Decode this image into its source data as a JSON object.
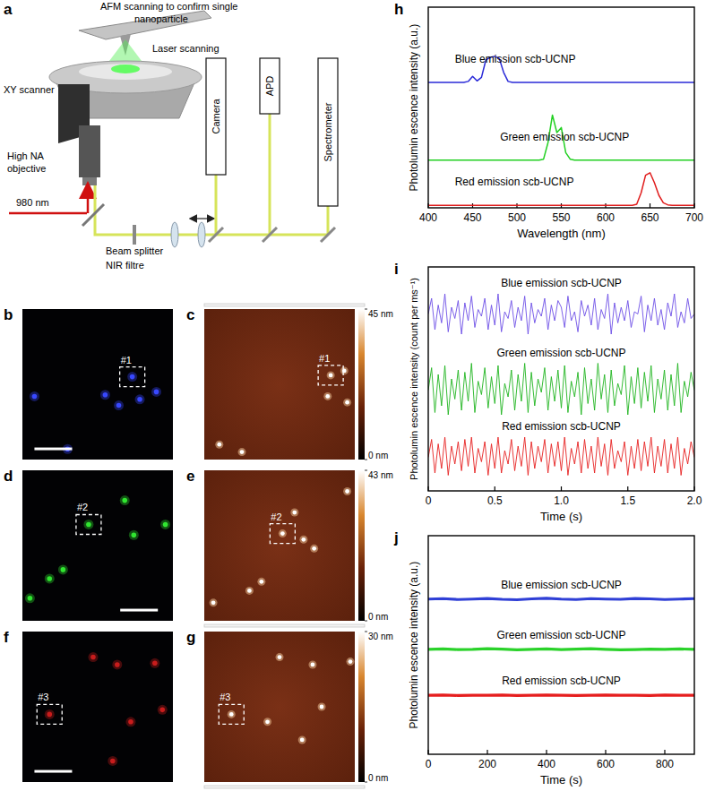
{
  "schematic": {
    "panel_label": "a",
    "afm_note": [
      "AFM scanning to confirm single",
      "nanoparticle"
    ],
    "laser_scanning": "Laser scanning",
    "xy_scanner": "XY scanner",
    "objective": [
      "High NA",
      "objective"
    ],
    "excitation": "980 nm",
    "beam_splitter": "Beam splitter",
    "filter": "NIR filtre",
    "detectors": [
      "Camera",
      "APD",
      "Spectrometer"
    ]
  },
  "images": [
    {
      "panel_label": "b",
      "color": "#3848ff",
      "particle_label": "#1"
    },
    {
      "panel_label": "c",
      "particle_label": "#1",
      "colorbar_ticks": [
        {
          "value": 0,
          "label": "0 nm"
        },
        {
          "value": 45,
          "label": "45 nm"
        }
      ]
    },
    {
      "panel_label": "d",
      "color": "#30e630",
      "particle_label": "#2"
    },
    {
      "panel_label": "e",
      "particle_label": "#2",
      "colorbar_ticks": [
        {
          "value": 0,
          "label": "0 nm"
        },
        {
          "value": 43,
          "label": "43 nm"
        }
      ]
    },
    {
      "panel_label": "f",
      "color": "#c81c1c",
      "particle_label": "#3"
    },
    {
      "panel_label": "g",
      "particle_label": "#3",
      "colorbar_ticks": [
        {
          "value": 0,
          "label": "0 nm"
        },
        {
          "value": 30,
          "label": "30 nm"
        }
      ]
    }
  ],
  "chart_data": [
    {
      "type": "line",
      "panel_label": "h",
      "x_label": "Wavelength (nm)",
      "y_label": "Photolumin escence intensity (a.u.)",
      "xlim": [
        400,
        700
      ],
      "xticks": [
        400,
        450,
        500,
        550,
        600,
        650,
        700
      ],
      "ylim": [
        0,
        4
      ],
      "tick_labels": "x",
      "x": [
        400,
        405,
        410,
        415,
        420,
        425,
        430,
        435,
        440,
        445,
        450,
        455,
        460,
        465,
        470,
        475,
        480,
        485,
        490,
        495,
        500,
        505,
        510,
        515,
        520,
        525,
        530,
        535,
        540,
        545,
        550,
        555,
        560,
        565,
        570,
        575,
        580,
        585,
        590,
        595,
        600,
        605,
        610,
        615,
        620,
        625,
        630,
        635,
        640,
        645,
        650,
        655,
        660,
        665,
        670,
        675,
        680,
        685,
        690,
        695,
        700
      ],
      "series": [
        {
          "name": "Blue emission scb-UCNP",
          "color": "#2a2ad8",
          "values": [
            2.5,
            2.5,
            2.5,
            2.5,
            2.5,
            2.5,
            2.5,
            2.5,
            2.5,
            2.52,
            2.62,
            2.53,
            2.6,
            2.95,
            3.0,
            3.02,
            2.98,
            2.7,
            2.52,
            2.5,
            2.5,
            2.5,
            2.5,
            2.5,
            2.5,
            2.5,
            2.5,
            2.5,
            2.5,
            2.5,
            2.5,
            2.5,
            2.5,
            2.5,
            2.5,
            2.5,
            2.5,
            2.5,
            2.5,
            2.5,
            2.5,
            2.5,
            2.5,
            2.5,
            2.5,
            2.5,
            2.5,
            2.5,
            2.5,
            2.5,
            2.5,
            2.5,
            2.5,
            2.5,
            2.5,
            2.5,
            2.5,
            2.5,
            2.5,
            2.5,
            2.5
          ]
        },
        {
          "name": "Green emission scb-UCNP",
          "color": "#22d022",
          "values": [
            0.95,
            0.95,
            0.95,
            0.95,
            0.95,
            0.95,
            0.95,
            0.95,
            0.95,
            0.95,
            0.95,
            0.95,
            0.95,
            0.95,
            0.95,
            0.95,
            0.95,
            0.95,
            0.95,
            0.95,
            0.95,
            0.95,
            0.95,
            0.95,
            0.95,
            0.95,
            0.97,
            1.3,
            1.85,
            1.5,
            1.6,
            1.1,
            0.97,
            0.95,
            0.95,
            0.95,
            0.95,
            0.95,
            0.95,
            0.95,
            0.95,
            0.95,
            0.95,
            0.95,
            0.95,
            0.95,
            0.95,
            0.95,
            0.95,
            0.95,
            0.95,
            0.95,
            0.95,
            0.95,
            0.95,
            0.95,
            0.95,
            0.95,
            0.95,
            0.95,
            0.95
          ]
        },
        {
          "name": "Red emission scb-UCNP",
          "color": "#e01c1c",
          "values": [
            0.05,
            0.05,
            0.05,
            0.05,
            0.05,
            0.05,
            0.05,
            0.05,
            0.05,
            0.05,
            0.05,
            0.05,
            0.05,
            0.05,
            0.05,
            0.05,
            0.05,
            0.05,
            0.05,
            0.05,
            0.05,
            0.05,
            0.05,
            0.05,
            0.05,
            0.05,
            0.05,
            0.05,
            0.05,
            0.05,
            0.05,
            0.05,
            0.05,
            0.05,
            0.05,
            0.05,
            0.05,
            0.05,
            0.05,
            0.05,
            0.05,
            0.05,
            0.05,
            0.05,
            0.05,
            0.05,
            0.05,
            0.07,
            0.3,
            0.65,
            0.7,
            0.5,
            0.25,
            0.1,
            0.06,
            0.05,
            0.05,
            0.05,
            0.05,
            0.05,
            0.05
          ]
        }
      ]
    },
    {
      "type": "line",
      "panel_label": "i",
      "x_label": "Time (s)",
      "y_label": "Photolumin escence intensity (count per ms⁻¹)",
      "xlim": [
        0,
        2
      ],
      "xticks": [
        0,
        0.5,
        {
          "value": 1,
          "label": "1.0"
        },
        1.5,
        {
          "value": 2,
          "label": "2.0"
        }
      ],
      "ylim": [
        0,
        10
      ],
      "tick_labels": "x",
      "x": [
        0,
        0.025,
        0.05,
        0.075,
        0.1,
        0.125,
        0.15,
        0.175,
        0.2,
        0.225,
        0.25,
        0.275,
        0.3,
        0.325,
        0.35,
        0.375,
        0.4,
        0.425,
        0.45,
        0.475,
        0.5,
        0.525,
        0.55,
        0.575,
        0.6,
        0.625,
        0.65,
        0.675,
        0.7,
        0.725,
        0.75,
        0.775,
        0.8,
        0.825,
        0.85,
        0.875,
        0.9,
        0.925,
        0.95,
        0.975,
        1,
        1.025,
        1.05,
        1.075,
        1.1,
        1.125,
        1.15,
        1.175,
        1.2,
        1.225,
        1.25,
        1.275,
        1.3,
        1.325,
        1.35,
        1.375,
        1.4,
        1.425,
        1.45,
        1.475,
        1.5,
        1.525,
        1.55,
        1.575,
        1.6,
        1.625,
        1.65,
        1.675,
        1.7,
        1.725,
        1.75,
        1.775,
        1.8,
        1.825,
        1.85,
        1.875,
        1.9,
        1.925,
        1.95,
        1.975,
        2
      ],
      "series": [
        {
          "name": "Blue emission scb-UCNP",
          "color": "#6d4fe6",
          "values": [
            7.9,
            8.6,
            7.2,
            8.3,
            7.5,
            8.8,
            7.1,
            8.2,
            7.7,
            8.5,
            7.0,
            8.4,
            7.6,
            8.7,
            7.3,
            8.1,
            7.8,
            8.6,
            7.2,
            8.3,
            7.4,
            8.8,
            7.1,
            8.0,
            7.7,
            8.5,
            7.3,
            8.2,
            7.6,
            8.7,
            7.0,
            8.4,
            7.5,
            8.1,
            7.8,
            8.6,
            7.2,
            8.3,
            7.6,
            8.5,
            8.2,
            7.3,
            8.7,
            7.6,
            8.0,
            7.1,
            8.5,
            7.8,
            8.3,
            7.4,
            8.6,
            7.2,
            8.1,
            7.7,
            8.8,
            7.0,
            8.4,
            7.5,
            8.2,
            7.6,
            8.5,
            7.3,
            8.0,
            7.9,
            8.7,
            7.1,
            8.3,
            7.6,
            8.6,
            7.4,
            8.1,
            7.2,
            8.4,
            7.8,
            8.8,
            7.3,
            8.0,
            7.5,
            8.6,
            7.7,
            7.9
          ]
        },
        {
          "name": "Green emission scb-UCNP",
          "color": "#1fb41f",
          "values": [
            4.5,
            5.5,
            3.5,
            5.2,
            3.8,
            5.6,
            3.4,
            5.0,
            4.1,
            5.4,
            3.6,
            5.3,
            4.0,
            5.7,
            3.5,
            4.9,
            4.3,
            5.5,
            3.7,
            5.1,
            3.9,
            5.6,
            3.4,
            4.8,
            4.2,
            5.4,
            3.6,
            5.2,
            4.0,
            5.7,
            3.5,
            5.3,
            3.8,
            5.0,
            4.4,
            5.5,
            3.6,
            5.1,
            4.0,
            5.4,
            3.7,
            5.6,
            3.5,
            4.9,
            4.2,
            5.3,
            3.4,
            5.5,
            3.9,
            5.0,
            3.6,
            5.7,
            4.1,
            5.2,
            3.5,
            5.4,
            3.8,
            4.8,
            4.3,
            5.6,
            3.4,
            5.1,
            3.9,
            5.5,
            3.7,
            5.3,
            4.0,
            5.6,
            3.5,
            5.0,
            4.1,
            5.4,
            3.6,
            5.2,
            3.8,
            5.7,
            3.5,
            4.9,
            4.2,
            5.3,
            4.5
          ]
        },
        {
          "name": "Red emission scb-UCNP",
          "color": "#e62020",
          "values": [
            1.5,
            2.3,
            0.8,
            2.1,
            1.0,
            2.4,
            0.7,
            2.0,
            1.2,
            2.2,
            0.9,
            2.3,
            1.1,
            2.4,
            0.8,
            1.9,
            1.3,
            2.2,
            0.7,
            2.1,
            1.0,
            2.4,
            0.8,
            1.8,
            1.2,
            2.3,
            0.9,
            2.0,
            1.1,
            2.4,
            0.7,
            2.2,
            1.0,
            2.0,
            1.3,
            2.3,
            0.8,
            2.1,
            1.1,
            2.2,
            0.9,
            2.4,
            0.7,
            1.9,
            1.2,
            2.2,
            0.8,
            2.3,
            1.0,
            2.0,
            0.8,
            2.4,
            1.1,
            2.1,
            0.7,
            2.3,
            1.0,
            1.8,
            1.3,
            2.2,
            0.7,
            2.0,
            1.0,
            2.3,
            0.9,
            2.2,
            1.1,
            2.4,
            0.8,
            2.0,
            1.1,
            2.3,
            0.8,
            2.1,
            1.0,
            2.4,
            0.7,
            1.9,
            1.2,
            2.2,
            1.5
          ]
        }
      ]
    },
    {
      "type": "line",
      "panel_label": "j",
      "x_label": "Time (s)",
      "y_label": "Photolumin escence intensity (a.u.)",
      "xlim": [
        0,
        900
      ],
      "xticks": [
        0,
        200,
        400,
        600,
        800
      ],
      "ylim": [
        0,
        10
      ],
      "tick_labels": "x",
      "x": [
        0,
        50,
        100,
        150,
        200,
        250,
        300,
        350,
        400,
        450,
        500,
        550,
        600,
        650,
        700,
        750,
        800,
        850,
        900
      ],
      "series": [
        {
          "name": "Blue emission scb-UCNP",
          "color": "#2f3fd6",
          "values": [
            7.1,
            7.12,
            7.08,
            7.1,
            7.13,
            7.09,
            7.07,
            7.11,
            7.14,
            7.1,
            7.08,
            7.12,
            7.1,
            7.09,
            7.13,
            7.11,
            7.08,
            7.1,
            7.12
          ]
        },
        {
          "name": "Green emission scb-UCNP",
          "color": "#2ad22a",
          "values": [
            4.8,
            4.82,
            4.79,
            4.8,
            4.83,
            4.81,
            4.78,
            4.8,
            4.82,
            4.79,
            4.81,
            4.83,
            4.8,
            4.78,
            4.79,
            4.81,
            4.8,
            4.82,
            4.8
          ]
        },
        {
          "name": "Red emission scb-UCNP",
          "color": "#e61e1e",
          "values": [
            2.7,
            2.71,
            2.69,
            2.7,
            2.7,
            2.71,
            2.69,
            2.7,
            2.71,
            2.7,
            2.69,
            2.7,
            2.71,
            2.7,
            2.7,
            2.69,
            2.71,
            2.7,
            2.7
          ]
        }
      ]
    }
  ]
}
